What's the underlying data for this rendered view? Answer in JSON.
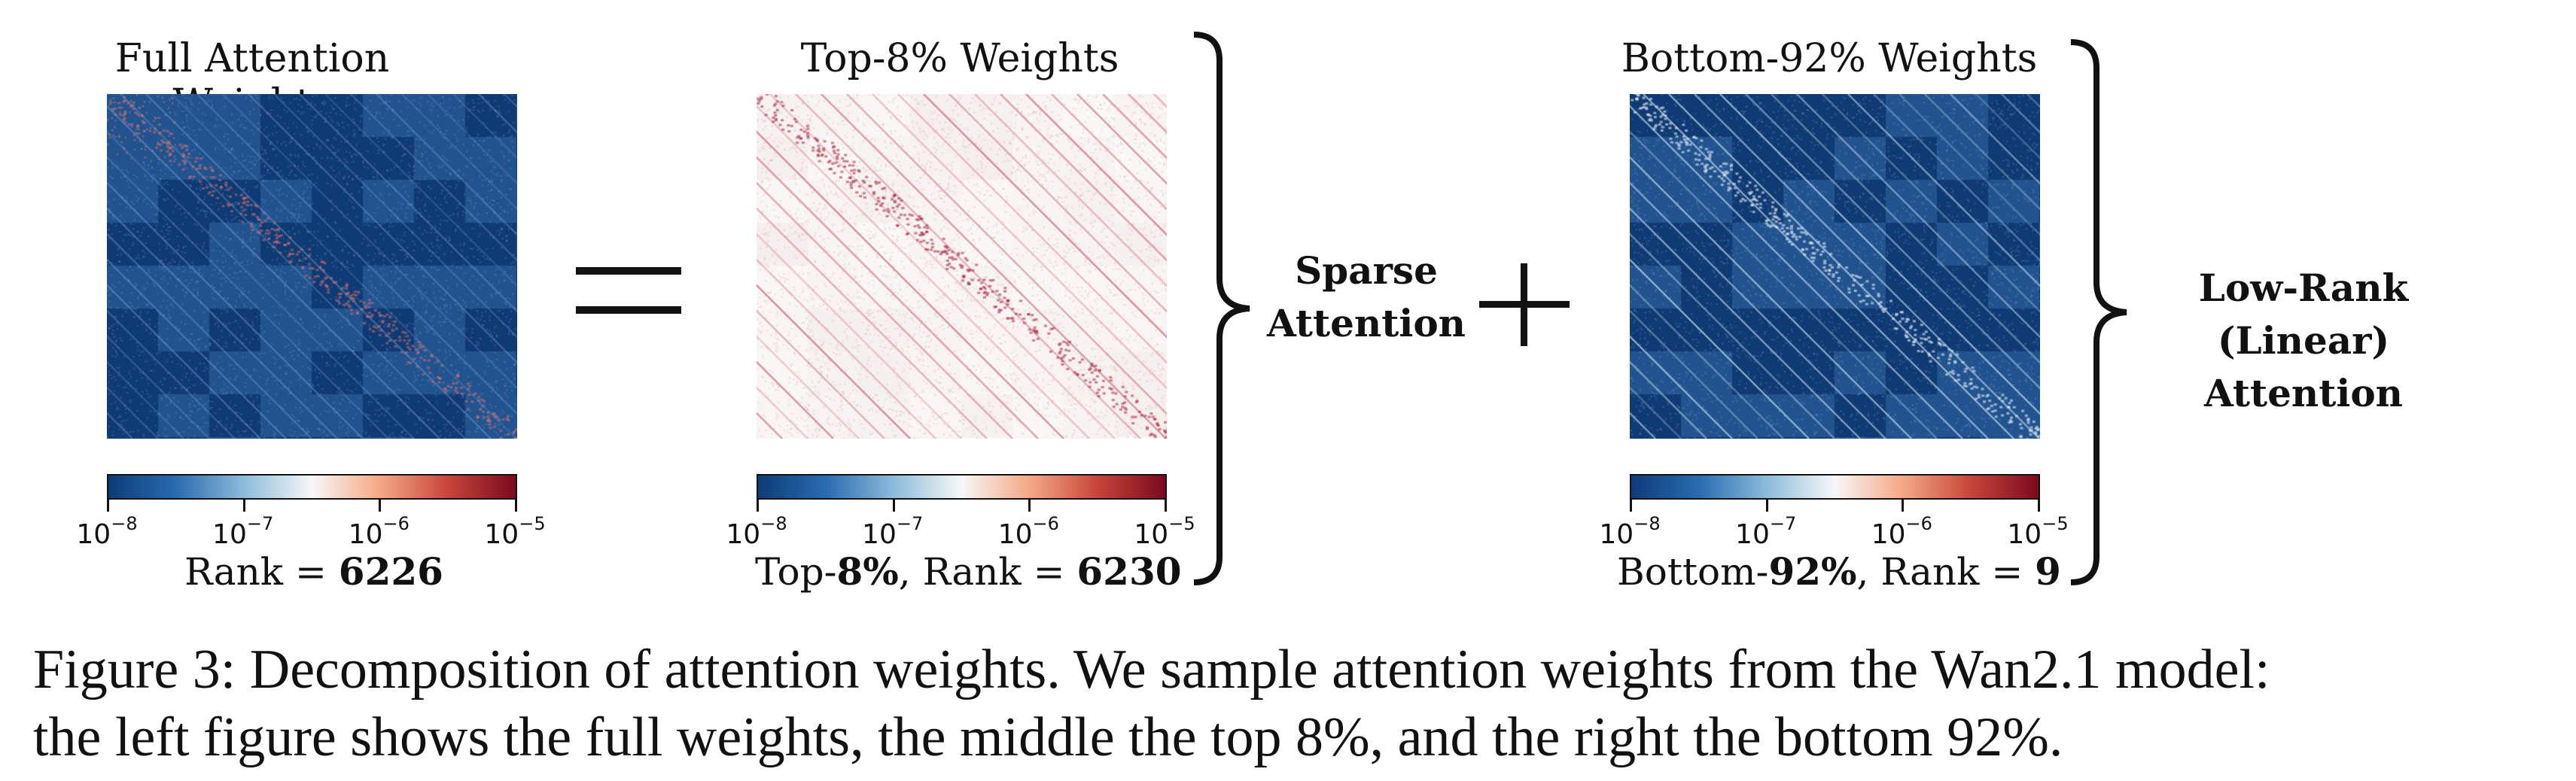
{
  "panels": [
    {
      "title": "Full Attention Weights",
      "rank_prefix": "",
      "rank_percent": "",
      "rank_mid": "Rank = ",
      "rank_value": "6226",
      "kind": "full"
    },
    {
      "title": "Top-8% Weights",
      "rank_prefix": "Top-",
      "rank_percent": "8%",
      "rank_mid": ",  Rank = ",
      "rank_value": "6230",
      "kind": "top"
    },
    {
      "title": "Bottom-92% Weights",
      "rank_prefix": "Bottom-",
      "rank_percent": "92%",
      "rank_mid": ",  Rank = ",
      "rank_value": "9",
      "kind": "bottom"
    }
  ],
  "colorbar": {
    "tick_bases": [
      "10",
      "10",
      "10",
      "10"
    ],
    "tick_exps": [
      "−8",
      "−7",
      "−6",
      "−5"
    ],
    "colors": [
      "#0d3c78",
      "#2a6bb0",
      "#8dbcdb",
      "#f7f7f7",
      "#f5a886",
      "#c8453a",
      "#7a0a1f"
    ]
  },
  "operators": {
    "equals": "=",
    "plus": "+"
  },
  "brace_labels": {
    "sparse": [
      "Sparse",
      "Attention"
    ],
    "lowrank": [
      "Low-Rank",
      "(Linear) Attention"
    ]
  },
  "caption": {
    "line1": "Figure 3: Decomposition of attention weights. We sample attention weights from the Wan2.1 model:",
    "line2": "the left figure shows the full weights, the middle the top 8%, and the right the bottom 92%."
  }
}
